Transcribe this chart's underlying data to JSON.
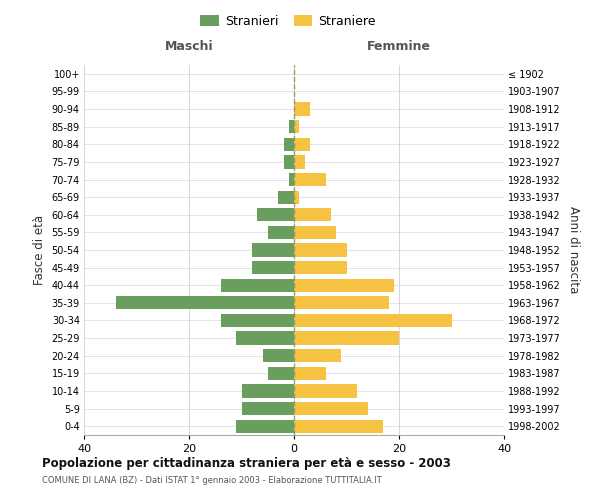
{
  "age_groups_bottom_to_top": [
    "0-4",
    "5-9",
    "10-14",
    "15-19",
    "20-24",
    "25-29",
    "30-34",
    "35-39",
    "40-44",
    "45-49",
    "50-54",
    "55-59",
    "60-64",
    "65-69",
    "70-74",
    "75-79",
    "80-84",
    "85-89",
    "90-94",
    "95-99",
    "100+"
  ],
  "birth_years_bottom_to_top": [
    "1998-2002",
    "1993-1997",
    "1988-1992",
    "1983-1987",
    "1978-1982",
    "1973-1977",
    "1968-1972",
    "1963-1967",
    "1958-1962",
    "1953-1957",
    "1948-1952",
    "1943-1947",
    "1938-1942",
    "1933-1937",
    "1928-1932",
    "1923-1927",
    "1918-1922",
    "1913-1917",
    "1908-1912",
    "1903-1907",
    "≤ 1902"
  ],
  "maschi_bottom_to_top": [
    11,
    10,
    10,
    5,
    6,
    11,
    14,
    34,
    14,
    8,
    8,
    5,
    7,
    3,
    1,
    2,
    2,
    1,
    0,
    0,
    0
  ],
  "femmine_bottom_to_top": [
    17,
    14,
    12,
    6,
    9,
    20,
    30,
    18,
    19,
    10,
    10,
    8,
    7,
    1,
    6,
    2,
    3,
    1,
    3,
    0,
    0
  ],
  "color_maschi": "#6a9e5e",
  "color_femmine": "#f5c242",
  "title": "Popolazione per cittadinanza straniera per età e sesso - 2003",
  "subtitle": "COMUNE DI LANA (BZ) - Dati ISTAT 1° gennaio 2003 - Elaborazione TUTTITALIA.IT",
  "ylabel_left": "Fasce di età",
  "ylabel_right": "Anni di nascita",
  "xlabel_maschi": "Maschi",
  "xlabel_femmine": "Femmine",
  "legend_maschi": "Stranieri",
  "legend_femmine": "Straniere",
  "xlim": 40,
  "background_color": "#ffffff",
  "grid_color": "#d0d0d0",
  "dashed_line_color": "#999966"
}
